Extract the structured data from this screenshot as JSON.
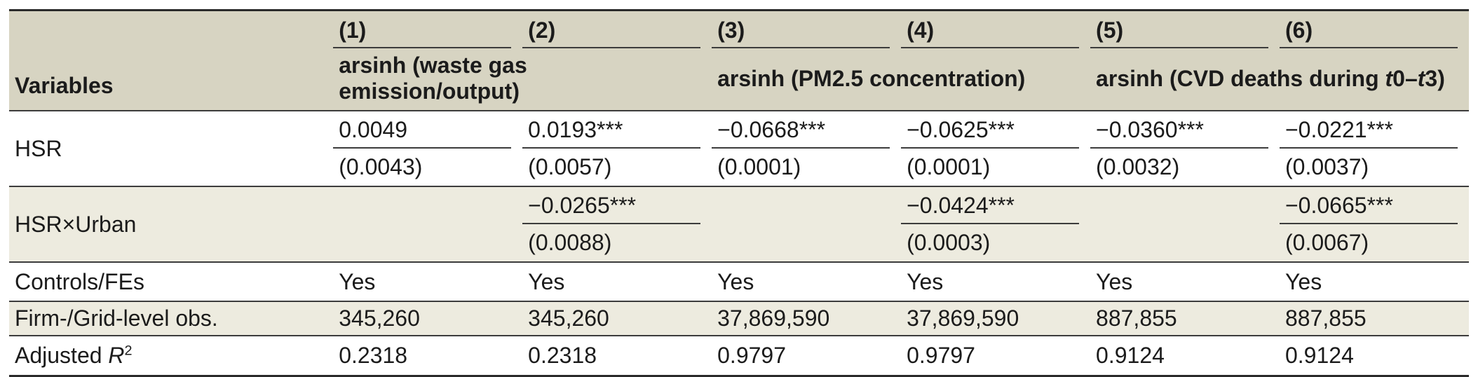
{
  "colors": {
    "header_bg": "#d7d4c2",
    "stripe_bg": "#edebdf",
    "text_color": "#1b1b1b",
    "line_color": "#3c3c3c",
    "border_color": "#2a2a2a"
  },
  "header": {
    "variables": "Variables",
    "cols": [
      "(1)",
      "(2)",
      "(3)",
      "(4)",
      "(5)",
      "(6)"
    ],
    "group1": "arsinh (waste gas emission/output)",
    "group2": "arsinh (PM2.5 concentration)",
    "group3": {
      "pre": "arsinh (CVD deaths during ",
      "t1": "t",
      "mid": "0–",
      "t2": "t",
      "post": "3)"
    }
  },
  "rows": {
    "hsr": {
      "label": "HSR",
      "coef": [
        "0.0049",
        "0.0193***",
        "−0.0668***",
        "−0.0625***",
        "−0.0360***",
        "−0.0221***"
      ],
      "se": [
        "(0.0043)",
        "(0.0057)",
        "(0.0001)",
        "(0.0001)",
        "(0.0032)",
        "(0.0037)"
      ]
    },
    "hsr_urban": {
      "label": "HSR×Urban",
      "coef": [
        "",
        "−0.0265***",
        "",
        "−0.0424***",
        "",
        "−0.0665***"
      ],
      "se": [
        "",
        "(0.0088)",
        "",
        "(0.0003)",
        "",
        "(0.0067)"
      ]
    },
    "controls": {
      "label": "Controls/FEs",
      "values": [
        "Yes",
        "Yes",
        "Yes",
        "Yes",
        "Yes",
        "Yes"
      ]
    },
    "obs": {
      "label": "Firm-/Grid-level obs.",
      "values": [
        "345,260",
        "345,260",
        "37,869,590",
        "37,869,590",
        "887,855",
        "887,855"
      ]
    },
    "r2": {
      "label_pre": "Adjusted ",
      "label_r": "R",
      "label_sup": "2",
      "values": [
        "0.2318",
        "0.2318",
        "0.9797",
        "0.9797",
        "0.9124",
        "0.9124"
      ]
    }
  }
}
